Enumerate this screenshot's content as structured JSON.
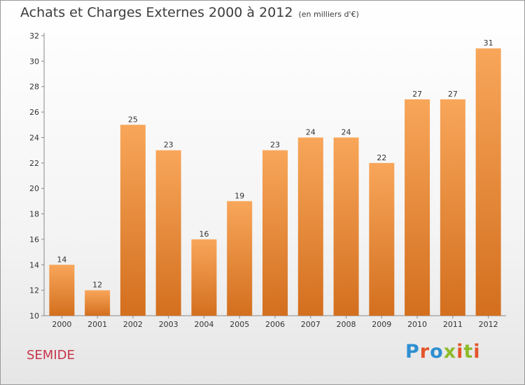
{
  "header": {
    "title": "Achats et Charges Externes 2000 à 2012",
    "unit": "(en milliers d'€)"
  },
  "footer": {
    "commune": "SEMIDE",
    "logo": "Proxiti"
  },
  "colors": {
    "bar_light": "#f8a65a",
    "bar_dark": "#d36f1e",
    "commune": "#c8334a",
    "logo_letters": [
      "#2f8fd1",
      "#e4542a",
      "#2f8fd1",
      "#8dbb2a",
      "#e4542a",
      "#8dbb2a",
      "#e4542a"
    ]
  },
  "chart_data": {
    "type": "bar",
    "title": "Achats et Charges Externes 2000 à 2012",
    "subtitle": "(en milliers d'€)",
    "categories": [
      "2000",
      "2001",
      "2002",
      "2003",
      "2004",
      "2005",
      "2006",
      "2007",
      "2008",
      "2009",
      "2010",
      "2011",
      "2012"
    ],
    "values": [
      14,
      12,
      25,
      23,
      16,
      19,
      23,
      24,
      24,
      22,
      27,
      27,
      31
    ],
    "ylim": [
      10,
      32
    ],
    "yticks": [
      10,
      12,
      14,
      16,
      18,
      20,
      22,
      24,
      26,
      28,
      30,
      32
    ],
    "grid": false,
    "legend": "none",
    "data_labels": true
  }
}
